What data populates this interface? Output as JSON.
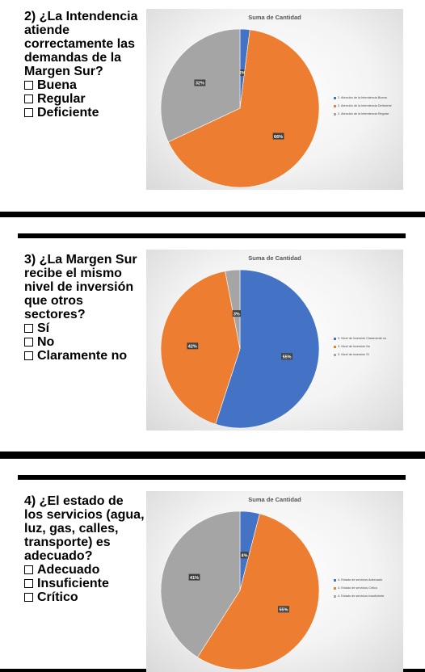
{
  "chart_data": [
    {
      "type": "pie",
      "title": "Suma de Cantidad",
      "question": "2) ¿La Intendencia atiende correctamente las demandas de la Margen Sur?",
      "options": [
        "Buena",
        "Regular",
        "Deficiente"
      ],
      "slices": [
        {
          "name": "2. Atención de la Intendencia Buena",
          "value": 2,
          "label": "2%",
          "color": "#4472c4"
        },
        {
          "name": "2. Atención de la Intendencia Deficiente",
          "value": 66,
          "label": "66%",
          "color": "#ed7d31"
        },
        {
          "name": "2. Atención de la Intendencia Regular",
          "value": 32,
          "label": "32%",
          "color": "#a5a5a5"
        }
      ],
      "legend_position": "right"
    },
    {
      "type": "pie",
      "title": "Suma de Cantidad",
      "question": "3) ¿La Margen Sur recibe el mismo nivel de inversión que otros sectores?",
      "options": [
        "Sí",
        "No",
        "Claramente no"
      ],
      "slices": [
        {
          "name": "3. Nivel de inversión Claramente no",
          "value": 55,
          "label": "55%",
          "color": "#4472c4"
        },
        {
          "name": "3. Nivel de inversión No",
          "value": 42,
          "label": "42%",
          "color": "#ed7d31"
        },
        {
          "name": "3. Nivel de inversión Si",
          "value": 3,
          "label": "3%",
          "color": "#a5a5a5"
        }
      ],
      "legend_position": "right"
    },
    {
      "type": "pie",
      "title": "Suma de Cantidad",
      "question": "4) ¿El estado de los servicios (agua, luz, gas, calles, transporte) es adecuado?",
      "options": [
        "Adecuado",
        "Insuficiente",
        "Crítico"
      ],
      "slices": [
        {
          "name": "4. Estado de servicios Adecuado",
          "value": 4,
          "label": "4%",
          "color": "#4472c4"
        },
        {
          "name": "4. Estado de servicios Crítico",
          "value": 55,
          "label": "55%",
          "color": "#ed7d31"
        },
        {
          "name": "4. Estado de servicios Insuficiente",
          "value": 41,
          "label": "41%",
          "color": "#a5a5a5"
        }
      ],
      "legend_position": "right"
    }
  ]
}
